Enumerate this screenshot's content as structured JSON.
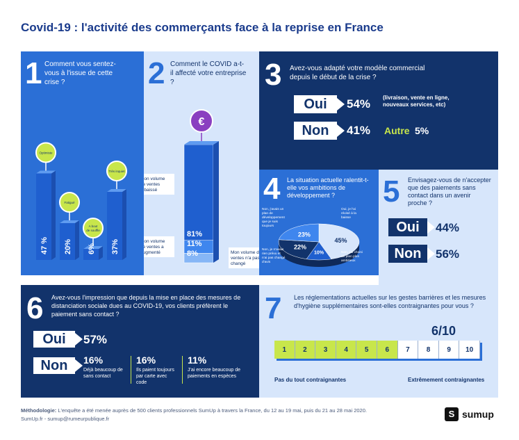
{
  "title": "Covid-19 : l'activité des commerçants face à la reprise en France",
  "q1": {
    "num": "1",
    "question": "Comment vous sentez-vous à l'issue de cette crise ?",
    "bars": [
      {
        "label": "Optimiste",
        "value": "47 %"
      },
      {
        "label": "Fatigué",
        "value": "20%"
      },
      {
        "label": "A bout de souffle",
        "value": "6%"
      },
      {
        "label": "Très inquiet",
        "value": "37%"
      }
    ]
  },
  "q2": {
    "num": "2",
    "question": "Comment le COVID a-t-il affecté votre entreprise ?",
    "euro": "€",
    "segments": [
      {
        "label": "Mon volume de ventes a baissé",
        "value": "81%"
      },
      {
        "label": "Mon volume de ventes a augmenté",
        "value": "11%"
      },
      {
        "label": "Mon volume de ventes n'a pas changé",
        "value": "8%"
      }
    ]
  },
  "q3": {
    "num": "3",
    "question": "Avez-vous adapté votre modèle commercial depuis le début de la crise ?",
    "oui": "Oui",
    "oui_pct": "54%",
    "oui_note": "(livraison, vente en ligne, nouveaux services, etc)",
    "non": "Non",
    "non_pct": "41%",
    "autre": "Autre",
    "autre_pct": "5%"
  },
  "q4": {
    "num": "4",
    "question": "La situation actuelle ralentit-t-elle vos ambitions de développement ?",
    "slices": [
      {
        "label": "Non, j'avais un plan de développement que je suis toujours",
        "value": "23%"
      },
      {
        "label": "Oui, je l'ai révisé à la baisse",
        "value": "45%"
      },
      {
        "label": "Non, je n'avais rien prévu et n'ai pas changé d'avis",
        "value": "22%"
      },
      {
        "label": "Non, j'ai choisi un plan plus ambitieux",
        "value": "10%"
      }
    ]
  },
  "q5": {
    "num": "5",
    "question": "Envisagez-vous de n'accepter que des paiements sans contact dans un avenir proche ?",
    "oui": "Oui",
    "oui_pct": "44%",
    "non": "Non",
    "non_pct": "56%"
  },
  "q6": {
    "num": "6",
    "question": "Avez-vous l'impression que depuis la mise en place des mesures de distanciation sociale dues au COVID-19, vos clients préfèrent le paiement sans contact ?",
    "oui": "Oui",
    "oui_pct": "57%",
    "non": "Non",
    "details": [
      {
        "value": "16%",
        "label": "Déjà beaucoup de sans contact"
      },
      {
        "value": "16%",
        "label": "Ils paient toujours par carte avec code"
      },
      {
        "value": "11%",
        "label": "J'ai encore beaucoup de paiements en espèces"
      }
    ]
  },
  "q7": {
    "num": "7",
    "question": "Les réglementations actuelles sur les gestes barrières et les mesures d'hygiène supplémentaires sont-elles contraignantes pour vous ?",
    "score": "6/10",
    "scale": [
      "1",
      "2",
      "3",
      "4",
      "5",
      "6",
      "7",
      "8",
      "9",
      "10"
    ],
    "filled": 6,
    "min_label": "Pas du tout contraignantes",
    "max_label": "Extrêmement contraignantes"
  },
  "footer": {
    "method_label": "Méthodologie:",
    "method_text": "L'enquête a été menée auprès de 500 clients professionnels SumUp à travers la France, du 12 au 19 mai, puis du 21 au 28 mai 2020.",
    "links": "SumUp.fr - sumup@rumeurpublique.fr",
    "logo": "sumup"
  },
  "colors": {
    "navy": "#12336b",
    "blue": "#2b6fd6",
    "light": "#d7e6fb",
    "lime": "#c8e64b"
  },
  "chart_data": [
    {
      "type": "bar",
      "categories": [
        "Optimiste",
        "Fatigué",
        "A bout de souffle",
        "Très inquiet"
      ],
      "values": [
        47,
        20,
        6,
        37
      ]
    },
    {
      "type": "bar",
      "categories": [
        "Mon volume de ventes a baissé",
        "Mon volume de ventes a augmenté",
        "Mon volume de ventes n'a pas changé"
      ],
      "values": [
        81,
        11,
        8
      ]
    },
    {
      "type": "pie",
      "categories": [
        "Oui, je l'ai révisé à la baisse",
        "Non, j'avais un plan de développement que je suis toujours",
        "Non, je n'avais rien prévu et n'ai pas changé d'avis",
        "Non, j'ai choisi un plan plus ambitieux"
      ],
      "values": [
        45,
        23,
        22,
        10
      ]
    },
    {
      "type": "bar",
      "categories": [
        "Oui",
        "Non",
        "Autre"
      ],
      "values": [
        54,
        41,
        5
      ]
    },
    {
      "type": "bar",
      "categories": [
        "Oui",
        "Non"
      ],
      "values": [
        44,
        56
      ]
    },
    {
      "type": "bar",
      "categories": [
        "Oui",
        "Déjà beaucoup de sans contact",
        "Ils paient toujours par carte avec code",
        "J'ai encore beaucoup de paiements en espèces"
      ],
      "values": [
        57,
        16,
        16,
        11
      ]
    }
  ]
}
